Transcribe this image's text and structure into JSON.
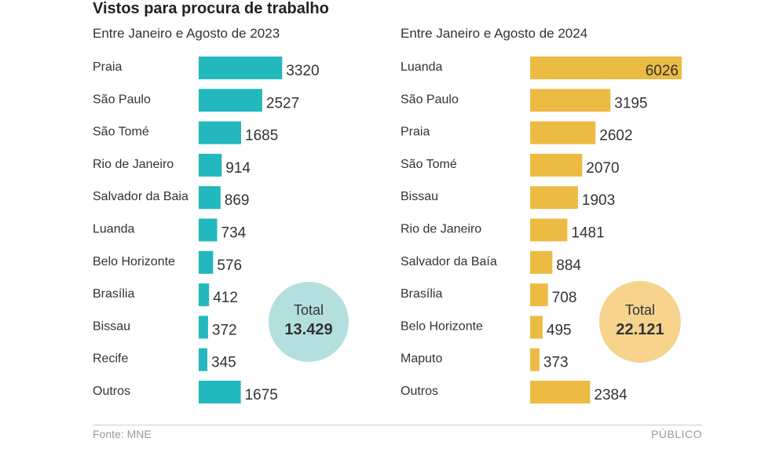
{
  "chart_data": [
    {
      "type": "bar",
      "orientation": "horizontal",
      "title": "Vistos para procura de trabalho",
      "subtitle": "Entre Janeiro e Agosto de 2023",
      "color": "#22b8bd",
      "total_color": "#b3e0df",
      "categories": [
        "Praia",
        "São Paulo",
        "São Tomé",
        "Rio de Janeiro",
        "Salvador da Baia",
        "Luanda",
        "Belo Horizonte",
        "Brasília",
        "Bissau",
        "Recife",
        "Outros"
      ],
      "values": [
        3320,
        2527,
        1685,
        914,
        869,
        734,
        576,
        412,
        372,
        345,
        1675
      ],
      "total_label": "Total",
      "total_value": "13.429"
    },
    {
      "type": "bar",
      "orientation": "horizontal",
      "title": "Vistos para procura de trabalho",
      "subtitle": "Entre Janeiro e Agosto de 2024",
      "color": "#ecbb44",
      "total_color": "#f6d48e",
      "categories": [
        "Luanda",
        "São Paulo",
        "Praia",
        "São Tomé",
        "Bissau",
        "Rio de Janeiro",
        "Salvador da Baía",
        "Brasília",
        "Belo Horizonte",
        "Maputo",
        "Outros"
      ],
      "values": [
        6026,
        3195,
        2602,
        2070,
        1903,
        1481,
        884,
        708,
        495,
        373,
        2384
      ],
      "total_label": "Total",
      "total_value": "22.121"
    }
  ],
  "header": {
    "title": "Vistos para procura de trabalho"
  },
  "footer": {
    "source": "Fonte: MNE",
    "brand": "PÚBLICO"
  }
}
